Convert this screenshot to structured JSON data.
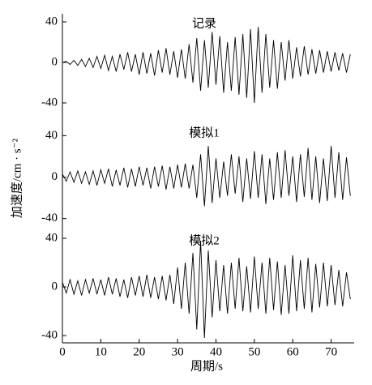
{
  "chart_data": [
    {
      "type": "line",
      "title": "记录",
      "color": "#000000",
      "ylabel": "加速度/cm · s⁻²",
      "x": [
        0,
        1,
        2,
        3,
        4,
        5,
        6,
        7,
        8,
        9,
        10,
        11,
        12,
        13,
        14,
        15,
        16,
        17,
        18,
        19,
        20,
        21,
        22,
        23,
        24,
        25,
        26,
        27,
        28,
        29,
        30,
        31,
        32,
        33,
        34,
        35,
        36,
        37,
        38,
        39,
        40,
        41,
        42,
        43,
        44,
        45,
        46,
        47,
        48,
        49,
        50,
        51,
        52,
        53,
        54,
        55,
        56,
        57,
        58,
        59,
        60,
        61,
        62,
        63,
        64,
        65,
        66,
        67,
        68,
        69,
        70,
        71,
        72,
        73,
        74,
        75
      ],
      "values": [
        0,
        1,
        -2,
        2,
        -3,
        3,
        -4,
        4,
        -5,
        6,
        -6,
        7,
        -8,
        6,
        -9,
        8,
        -7,
        10,
        -9,
        8,
        -12,
        10,
        -11,
        9,
        -13,
        12,
        -10,
        14,
        -12,
        11,
        -15,
        13,
        -16,
        18,
        -20,
        24,
        -28,
        22,
        -25,
        30,
        -22,
        26,
        -30,
        20,
        -28,
        25,
        -32,
        28,
        -35,
        33,
        -40,
        35,
        -30,
        28,
        -25,
        22,
        -26,
        20,
        -18,
        22,
        -16,
        15,
        -14,
        16,
        -12,
        13,
        -11,
        12,
        -10,
        11,
        -9,
        10,
        -8,
        9,
        -10,
        8
      ],
      "ylim": [
        -60,
        48
      ],
      "yticks": [
        -40,
        0,
        40
      ]
    },
    {
      "type": "line",
      "title": "模拟1",
      "color": "#000000",
      "x": [
        0,
        1,
        2,
        3,
        4,
        5,
        6,
        7,
        8,
        9,
        10,
        11,
        12,
        13,
        14,
        15,
        16,
        17,
        18,
        19,
        20,
        21,
        22,
        23,
        24,
        25,
        26,
        27,
        28,
        29,
        30,
        31,
        32,
        33,
        34,
        35,
        36,
        37,
        38,
        39,
        40,
        41,
        42,
        43,
        44,
        45,
        46,
        47,
        48,
        49,
        50,
        51,
        52,
        53,
        54,
        55,
        56,
        57,
        58,
        59,
        60,
        61,
        62,
        63,
        64,
        65,
        66,
        67,
        68,
        69,
        70,
        71,
        72,
        73,
        74,
        75
      ],
      "values": [
        3,
        -4,
        5,
        -5,
        6,
        -6,
        5,
        -7,
        6,
        -8,
        7,
        -6,
        8,
        -9,
        7,
        -8,
        9,
        -10,
        8,
        -9,
        10,
        -8,
        9,
        -11,
        10,
        -9,
        11,
        -12,
        10,
        -11,
        12,
        -10,
        13,
        -11,
        12,
        -20,
        22,
        -28,
        30,
        -25,
        18,
        -20,
        15,
        -18,
        22,
        -16,
        20,
        -24,
        18,
        -21,
        25,
        -20,
        22,
        -26,
        18,
        -22,
        24,
        -20,
        26,
        -18,
        20,
        -24,
        22,
        -19,
        28,
        -22,
        20,
        -25,
        18,
        -23,
        30,
        -20,
        24,
        -22,
        19,
        -18
      ],
      "ylim": [
        -52,
        52
      ],
      "yticks": [
        -40,
        0,
        40
      ]
    },
    {
      "type": "line",
      "title": "模拟2",
      "color": "#000000",
      "xlabel": "周期/s",
      "x": [
        0,
        1,
        2,
        3,
        4,
        5,
        6,
        7,
        8,
        9,
        10,
        11,
        12,
        13,
        14,
        15,
        16,
        17,
        18,
        19,
        20,
        21,
        22,
        23,
        24,
        25,
        26,
        27,
        28,
        29,
        30,
        31,
        32,
        33,
        34,
        35,
        36,
        37,
        38,
        39,
        40,
        41,
        42,
        43,
        44,
        45,
        46,
        47,
        48,
        49,
        50,
        51,
        52,
        53,
        54,
        55,
        56,
        57,
        58,
        59,
        60,
        61,
        62,
        63,
        64,
        65,
        66,
        67,
        68,
        69,
        70,
        71,
        72,
        73,
        74,
        75
      ],
      "values": [
        4,
        -5,
        6,
        -6,
        5,
        -7,
        6,
        -5,
        7,
        -6,
        6,
        -7,
        8,
        -6,
        7,
        -8,
        6,
        -9,
        8,
        -7,
        9,
        -8,
        10,
        -9,
        8,
        -10,
        9,
        -11,
        10,
        -14,
        16,
        -18,
        20,
        -22,
        28,
        -35,
        38,
        -42,
        30,
        -25,
        22,
        -20,
        18,
        -22,
        20,
        -18,
        24,
        -20,
        17,
        -21,
        25,
        -18,
        20,
        -22,
        24,
        -19,
        21,
        -23,
        18,
        -22,
        26,
        -20,
        22,
        -18,
        24,
        -21,
        19,
        -17,
        20,
        -16,
        18,
        -15,
        14,
        -16,
        12,
        -10
      ],
      "ylim": [
        -46,
        46
      ],
      "yticks": [
        -40,
        0,
        40
      ],
      "xlim": [
        0,
        76
      ],
      "xticks": [
        0,
        10,
        20,
        30,
        40,
        50,
        60,
        70
      ]
    }
  ]
}
